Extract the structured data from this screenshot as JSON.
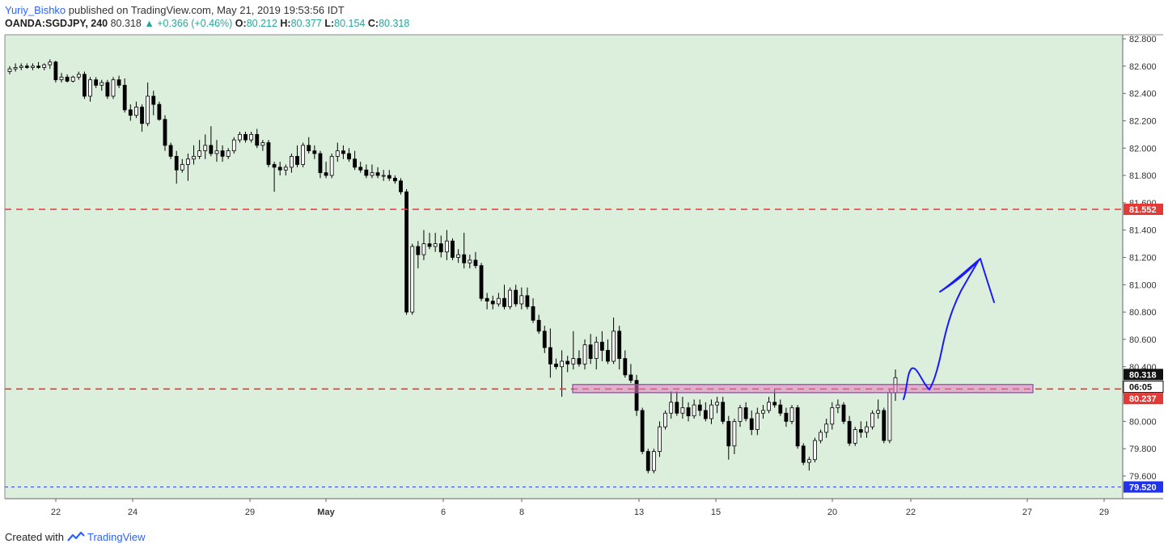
{
  "header": {
    "author": "Yuriy_Bishko",
    "published_text": "published on TradingView.com, May 21, 2019 19:53:56 IDT",
    "symbol": "OANDA:SGDJPY, 240",
    "last": "80.318",
    "change": "+0.366 (+0.46%)",
    "o_label": "O:",
    "o_value": "80.212",
    "h_label": "H:",
    "h_value": "80.377",
    "l_label": "L:",
    "l_value": "80.154",
    "c_label": "C:",
    "c_value": "80.318"
  },
  "footer": {
    "created_with": "Created with",
    "brand": "TradingView"
  },
  "colors": {
    "background": "#dcefdc",
    "candle_up": "#ffffff",
    "candle_down": "#000000",
    "red_line": "#e53935",
    "blue_line": "#3344ee",
    "zone_fill": "#e27bbf",
    "zone_border": "#8e44ad",
    "drawing": "#1a1aff"
  },
  "chart_data": {
    "type": "candlestick",
    "y_ticks": [
      "82.800",
      "82.600",
      "82.400",
      "82.200",
      "82.000",
      "81.800",
      "81.600",
      "81.400",
      "81.200",
      "81.000",
      "80.800",
      "80.600",
      "80.400",
      "80.200",
      "80.000",
      "79.800",
      "79.600"
    ],
    "y_range": [
      79.45,
      82.82
    ],
    "x_ticks": [
      "22",
      "24",
      "29",
      "May",
      "6",
      "8",
      "13",
      "15",
      "20",
      "22",
      "27",
      "29"
    ],
    "levels": [
      {
        "value": 81.552,
        "label": "81.552",
        "style": "dashed",
        "color": "#e53935"
      },
      {
        "value": 80.237,
        "label": "80.237",
        "style": "dashed",
        "color": "#e53935"
      },
      {
        "value": 79.52,
        "label": "79.520",
        "style": "dotted",
        "color": "#3344ee"
      }
    ],
    "price_label": {
      "value": 80.318,
      "label": "80.318"
    },
    "countdown": "06:05",
    "zone": {
      "top": 80.27,
      "bottom": 80.21
    },
    "candles": [
      [
        82.56,
        82.6,
        82.54,
        82.58
      ],
      [
        82.58,
        82.62,
        82.56,
        82.59
      ],
      [
        82.59,
        82.62,
        82.57,
        82.6
      ],
      [
        82.6,
        82.62,
        82.58,
        82.59
      ],
      [
        82.59,
        82.62,
        82.57,
        82.6
      ],
      [
        82.6,
        82.63,
        82.58,
        82.59
      ],
      [
        82.59,
        82.62,
        82.57,
        82.61
      ],
      [
        82.61,
        82.65,
        82.58,
        82.63
      ],
      [
        82.63,
        82.64,
        82.48,
        82.5
      ],
      [
        82.5,
        82.55,
        82.48,
        82.52
      ],
      [
        82.52,
        82.54,
        82.48,
        82.49
      ],
      [
        82.49,
        82.53,
        82.48,
        82.52
      ],
      [
        82.52,
        82.56,
        82.5,
        82.54
      ],
      [
        82.54,
        82.56,
        82.36,
        82.38
      ],
      [
        82.38,
        82.52,
        82.34,
        82.5
      ],
      [
        82.5,
        82.52,
        82.44,
        82.46
      ],
      [
        82.46,
        82.5,
        82.42,
        82.48
      ],
      [
        82.48,
        82.5,
        82.36,
        82.38
      ],
      [
        82.38,
        82.52,
        82.36,
        82.5
      ],
      [
        82.5,
        82.53,
        82.44,
        82.46
      ],
      [
        82.46,
        82.51,
        82.26,
        82.28
      ],
      [
        82.28,
        82.32,
        82.2,
        82.24
      ],
      [
        82.24,
        82.34,
        82.22,
        82.3
      ],
      [
        82.3,
        82.32,
        82.12,
        82.18
      ],
      [
        82.18,
        82.48,
        82.16,
        82.38
      ],
      [
        82.38,
        82.42,
        82.24,
        82.32
      ],
      [
        82.32,
        82.34,
        82.2,
        82.21
      ],
      [
        82.21,
        82.24,
        81.98,
        82.02
      ],
      [
        82.02,
        82.04,
        81.92,
        81.94
      ],
      [
        81.94,
        81.98,
        81.74,
        81.84
      ],
      [
        81.84,
        81.92,
        81.82,
        81.88
      ],
      [
        81.88,
        81.96,
        81.76,
        81.92
      ],
      [
        81.92,
        82.02,
        81.88,
        81.94
      ],
      [
        81.94,
        82.06,
        81.92,
        81.98
      ],
      [
        81.98,
        82.1,
        81.92,
        82.02
      ],
      [
        82.02,
        82.16,
        81.94,
        81.96
      ],
      [
        81.96,
        82.06,
        81.9,
        81.98
      ],
      [
        81.98,
        82.02,
        81.9,
        81.94
      ],
      [
        81.94,
        82.0,
        81.92,
        81.98
      ],
      [
        81.98,
        82.08,
        81.96,
        82.06
      ],
      [
        82.06,
        82.12,
        82.04,
        82.1
      ],
      [
        82.1,
        82.12,
        82.04,
        82.06
      ],
      [
        82.06,
        82.12,
        82.04,
        82.1
      ],
      [
        82.1,
        82.14,
        82.0,
        82.02
      ],
      [
        82.02,
        82.06,
        81.98,
        82.04
      ],
      [
        82.04,
        82.06,
        81.86,
        81.88
      ],
      [
        81.88,
        81.9,
        81.68,
        81.86
      ],
      [
        81.86,
        81.9,
        81.8,
        81.84
      ],
      [
        81.84,
        81.88,
        81.8,
        81.86
      ],
      [
        81.86,
        81.96,
        81.82,
        81.94
      ],
      [
        81.94,
        82.02,
        81.86,
        81.88
      ],
      [
        81.88,
        82.04,
        81.86,
        82.02
      ],
      [
        82.02,
        82.08,
        81.96,
        81.98
      ],
      [
        81.98,
        82.02,
        81.92,
        81.96
      ],
      [
        81.96,
        81.98,
        81.78,
        81.82
      ],
      [
        81.82,
        81.9,
        81.78,
        81.8
      ],
      [
        81.8,
        81.96,
        81.78,
        81.94
      ],
      [
        81.94,
        82.04,
        81.9,
        81.98
      ],
      [
        81.98,
        82.02,
        81.92,
        81.96
      ],
      [
        81.96,
        82.0,
        81.9,
        81.92
      ],
      [
        81.92,
        81.98,
        81.84,
        81.86
      ],
      [
        81.86,
        81.9,
        81.82,
        81.84
      ],
      [
        81.84,
        81.88,
        81.78,
        81.8
      ],
      [
        81.8,
        81.88,
        81.78,
        81.82
      ],
      [
        81.82,
        81.86,
        81.78,
        81.8
      ],
      [
        81.8,
        81.84,
        81.76,
        81.8
      ],
      [
        81.8,
        81.84,
        81.76,
        81.78
      ],
      [
        81.78,
        81.8,
        81.74,
        81.76
      ],
      [
        81.76,
        81.78,
        81.66,
        81.68
      ],
      [
        81.68,
        81.7,
        80.78,
        80.8
      ],
      [
        80.8,
        81.3,
        80.78,
        81.28
      ],
      [
        81.28,
        81.32,
        81.12,
        81.22
      ],
      [
        81.22,
        81.4,
        81.18,
        81.3
      ],
      [
        81.3,
        81.38,
        81.26,
        81.28
      ],
      [
        81.28,
        81.38,
        81.24,
        81.3
      ],
      [
        81.3,
        81.36,
        81.2,
        81.24
      ],
      [
        81.24,
        81.4,
        81.18,
        81.32
      ],
      [
        81.32,
        81.34,
        81.18,
        81.2
      ],
      [
        81.2,
        81.26,
        81.16,
        81.22
      ],
      [
        81.22,
        81.38,
        81.12,
        81.16
      ],
      [
        81.16,
        81.22,
        81.12,
        81.18
      ],
      [
        81.18,
        81.24,
        81.12,
        81.14
      ],
      [
        81.14,
        81.16,
        80.88,
        80.9
      ],
      [
        80.9,
        80.94,
        80.82,
        80.88
      ],
      [
        80.88,
        80.92,
        80.82,
        80.86
      ],
      [
        80.86,
        80.94,
        80.84,
        80.9
      ],
      [
        80.9,
        81.0,
        80.82,
        80.84
      ],
      [
        80.84,
        80.98,
        80.82,
        80.96
      ],
      [
        80.96,
        81.0,
        80.84,
        80.86
      ],
      [
        80.86,
        80.98,
        80.82,
        80.92
      ],
      [
        80.92,
        80.98,
        80.82,
        80.84
      ],
      [
        80.84,
        80.9,
        80.72,
        80.74
      ],
      [
        80.74,
        80.78,
        80.64,
        80.66
      ],
      [
        80.66,
        80.7,
        80.5,
        80.54
      ],
      [
        80.54,
        80.68,
        80.32,
        80.42
      ],
      [
        80.42,
        80.46,
        80.38,
        80.4
      ],
      [
        80.4,
        80.52,
        80.18,
        80.44
      ],
      [
        80.44,
        80.48,
        80.36,
        80.42
      ],
      [
        80.42,
        80.66,
        80.38,
        80.46
      ],
      [
        80.46,
        80.52,
        80.4,
        80.42
      ],
      [
        80.42,
        80.6,
        80.38,
        80.56
      ],
      [
        80.56,
        80.64,
        80.42,
        80.46
      ],
      [
        80.46,
        80.62,
        80.38,
        80.58
      ],
      [
        80.58,
        80.66,
        80.44,
        80.52
      ],
      [
        80.52,
        80.6,
        80.42,
        80.44
      ],
      [
        80.44,
        80.76,
        80.42,
        80.66
      ],
      [
        80.66,
        80.7,
        80.38,
        80.46
      ],
      [
        80.46,
        80.52,
        80.32,
        80.34
      ],
      [
        80.34,
        80.42,
        80.28,
        80.3
      ],
      [
        80.3,
        80.34,
        80.04,
        80.08
      ],
      [
        80.08,
        80.1,
        79.76,
        79.78
      ],
      [
        79.78,
        79.8,
        79.62,
        79.64
      ],
      [
        79.64,
        79.8,
        79.62,
        79.78
      ],
      [
        79.78,
        80.0,
        79.74,
        79.96
      ],
      [
        79.96,
        80.08,
        79.94,
        80.06
      ],
      [
        80.06,
        80.22,
        80.02,
        80.14
      ],
      [
        80.14,
        80.22,
        80.04,
        80.06
      ],
      [
        80.06,
        80.18,
        80.02,
        80.1
      ],
      [
        80.1,
        80.14,
        80.0,
        80.04
      ],
      [
        80.04,
        80.16,
        80.02,
        80.12
      ],
      [
        80.12,
        80.16,
        80.04,
        80.08
      ],
      [
        80.08,
        80.14,
        80.0,
        80.02
      ],
      [
        80.02,
        80.16,
        79.98,
        80.12
      ],
      [
        80.12,
        80.18,
        80.06,
        80.14
      ],
      [
        80.14,
        80.18,
        79.98,
        80.0
      ],
      [
        80.0,
        80.04,
        79.72,
        79.82
      ],
      [
        79.82,
        80.02,
        79.76,
        80.0
      ],
      [
        80.0,
        80.12,
        79.96,
        80.1
      ],
      [
        80.1,
        80.14,
        80.0,
        80.02
      ],
      [
        80.02,
        80.08,
        79.9,
        79.94
      ],
      [
        79.94,
        80.1,
        79.9,
        80.06
      ],
      [
        80.06,
        80.12,
        80.02,
        80.08
      ],
      [
        80.08,
        80.18,
        80.06,
        80.14
      ],
      [
        80.14,
        80.24,
        80.1,
        80.12
      ],
      [
        80.12,
        80.16,
        80.04,
        80.06
      ],
      [
        80.06,
        80.1,
        79.96,
        80.0
      ],
      [
        80.0,
        80.12,
        79.98,
        80.1
      ],
      [
        80.1,
        80.12,
        79.8,
        79.82
      ],
      [
        79.82,
        79.84,
        79.68,
        79.7
      ],
      [
        79.7,
        79.74,
        79.64,
        79.72
      ],
      [
        79.72,
        79.88,
        79.7,
        79.86
      ],
      [
        79.86,
        79.94,
        79.84,
        79.92
      ],
      [
        79.92,
        80.02,
        79.88,
        79.98
      ],
      [
        79.98,
        80.14,
        79.94,
        80.1
      ],
      [
        80.1,
        80.16,
        80.06,
        80.12
      ],
      [
        80.12,
        80.14,
        79.98,
        80.0
      ],
      [
        80.0,
        80.04,
        79.82,
        79.84
      ],
      [
        79.84,
        79.96,
        79.82,
        79.94
      ],
      [
        79.94,
        80.0,
        79.88,
        79.92
      ],
      [
        79.92,
        80.0,
        79.88,
        79.96
      ],
      [
        79.96,
        80.08,
        79.94,
        80.06
      ],
      [
        80.06,
        80.16,
        80.02,
        80.08
      ],
      [
        80.08,
        80.1,
        79.84,
        79.86
      ],
      [
        79.86,
        80.24,
        79.84,
        80.21
      ],
      [
        80.21,
        80.38,
        80.15,
        80.32
      ]
    ]
  }
}
